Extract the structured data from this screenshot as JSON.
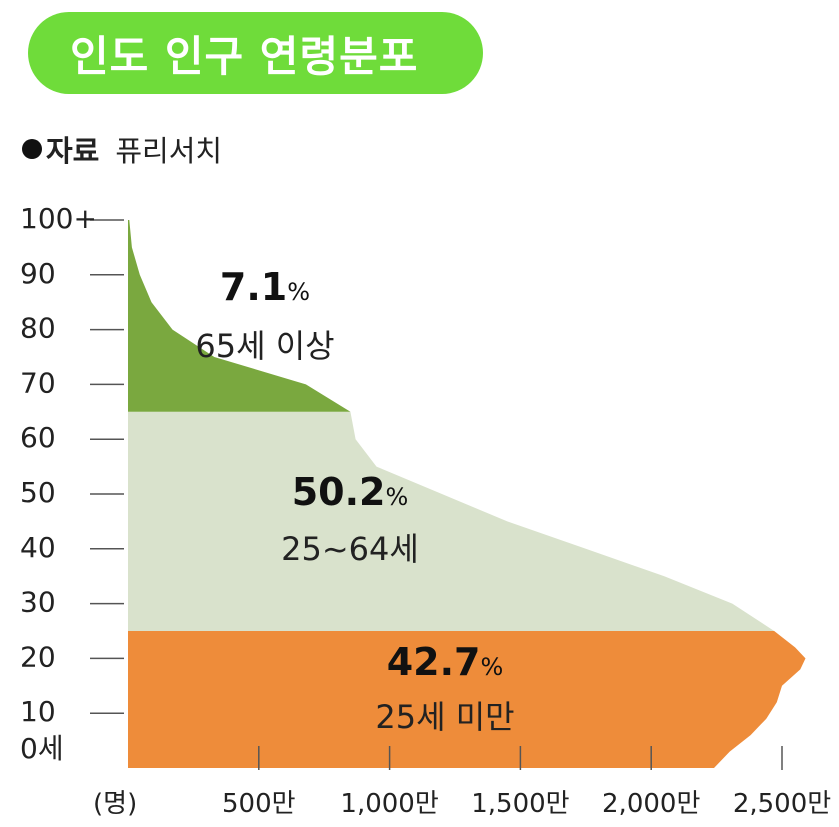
{
  "title": "인도 인구 연령분포",
  "source": {
    "label": "자료",
    "value": "퓨리서치"
  },
  "colors": {
    "title_bg": "#6fdc3a",
    "senior": "#7aa83f",
    "working": "#d9e2cc",
    "youth": "#ee8c3a"
  },
  "chart_data": {
    "type": "area",
    "title": "인도 인구 연령분포",
    "xlabel": "(명)",
    "ylabel": "",
    "xlim": [
      0,
      2500
    ],
    "ylim": [
      0,
      100
    ],
    "x_ticks": [
      500,
      1000,
      1500,
      2000,
      2500
    ],
    "x_tick_labels": [
      "500만",
      "1,000만",
      "1,500만",
      "2,000만",
      "2,500만"
    ],
    "y_ticks": [
      0,
      10,
      20,
      30,
      40,
      50,
      60,
      70,
      80,
      90,
      100
    ],
    "y_tick_labels": [
      "0세",
      "10",
      "20",
      "30",
      "40",
      "50",
      "60",
      "70",
      "80",
      "90",
      "100+"
    ],
    "profile": [
      {
        "age": 0,
        "pop": 2240
      },
      {
        "age": 3,
        "pop": 2300
      },
      {
        "age": 6,
        "pop": 2380
      },
      {
        "age": 9,
        "pop": 2440
      },
      {
        "age": 12,
        "pop": 2480
      },
      {
        "age": 15,
        "pop": 2500
      },
      {
        "age": 18,
        "pop": 2570
      },
      {
        "age": 20,
        "pop": 2590
      },
      {
        "age": 22,
        "pop": 2550
      },
      {
        "age": 25,
        "pop": 2470
      },
      {
        "age": 30,
        "pop": 2310
      },
      {
        "age": 35,
        "pop": 2050
      },
      {
        "age": 40,
        "pop": 1750
      },
      {
        "age": 45,
        "pop": 1450
      },
      {
        "age": 50,
        "pop": 1200
      },
      {
        "age": 55,
        "pop": 950
      },
      {
        "age": 60,
        "pop": 870
      },
      {
        "age": 65,
        "pop": 850
      },
      {
        "age": 70,
        "pop": 680
      },
      {
        "age": 75,
        "pop": 330
      },
      {
        "age": 80,
        "pop": 170
      },
      {
        "age": 85,
        "pop": 90
      },
      {
        "age": 90,
        "pop": 45
      },
      {
        "age": 95,
        "pop": 15
      },
      {
        "age": 100,
        "pop": 5
      }
    ],
    "segments": [
      {
        "name": "25세 미만",
        "from_age": 0,
        "to_age": 25,
        "percent": "42.7",
        "color": "#ee8c3a"
      },
      {
        "name": "25~64세",
        "from_age": 25,
        "to_age": 65,
        "percent": "50.2",
        "color": "#d9e2cc"
      },
      {
        "name": "65세 이상",
        "from_age": 65,
        "to_age": 100,
        "percent": "7.1",
        "color": "#7aa83f"
      }
    ],
    "percent_sign": "%"
  }
}
